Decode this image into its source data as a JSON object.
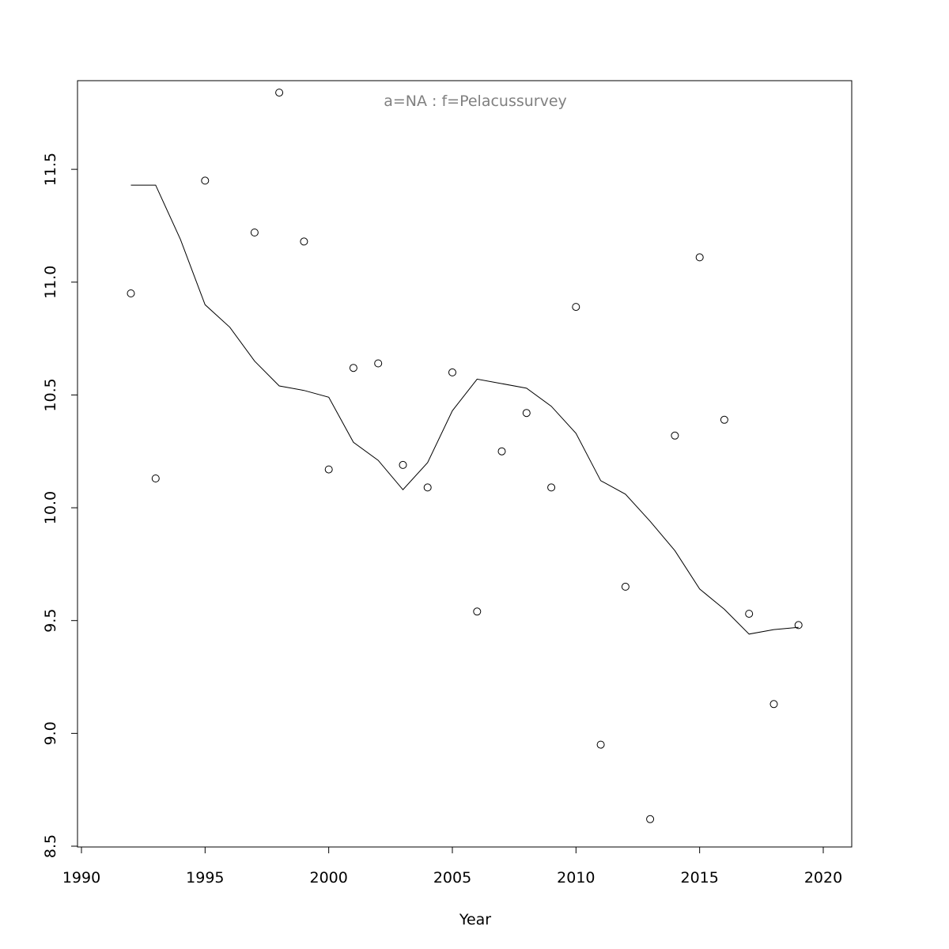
{
  "chart_data": {
    "type": "scatter",
    "title": "a=NA  :  f=Pelacussurvey",
    "xlabel": "Year",
    "ylabel": "",
    "xlim": [
      1990,
      2020
    ],
    "ylim": [
      8.5,
      11.9
    ],
    "xticks": [
      1990,
      1995,
      2000,
      2005,
      2010,
      2015,
      2020
    ],
    "yticks": [
      8.5,
      9.0,
      9.5,
      10.0,
      10.5,
      11.0,
      11.5
    ],
    "xtick_labels": [
      "1990",
      "1995",
      "2000",
      "2005",
      "2010",
      "2015",
      "2020"
    ],
    "ytick_labels": [
      "8.5",
      "9.0",
      "9.5",
      "10.0",
      "10.5",
      "11.0",
      "11.5"
    ],
    "grid": false,
    "series": [
      {
        "type": "scatter",
        "x": [
          1992,
          1993,
          1995,
          1997,
          1998,
          1999,
          2000,
          2001,
          2002,
          2003,
          2004,
          2005,
          2006,
          2007,
          2008,
          2009,
          2010,
          2011,
          2012,
          2013,
          2014,
          2015,
          2016,
          2017,
          2018,
          2019
        ],
        "y": [
          10.95,
          10.13,
          11.45,
          11.22,
          11.84,
          11.18,
          10.17,
          10.62,
          10.64,
          10.19,
          10.09,
          10.6,
          9.54,
          10.25,
          10.42,
          10.09,
          10.89,
          8.95,
          9.65,
          8.62,
          10.32,
          11.11,
          10.39,
          9.53,
          9.13,
          9.48
        ]
      },
      {
        "type": "line",
        "x": [
          1992,
          1993,
          1994,
          1995,
          1996,
          1997,
          1998,
          1999,
          2000,
          2001,
          2002,
          2003,
          2004,
          2005,
          2006,
          2007,
          2008,
          2009,
          2010,
          2011,
          2012,
          2013,
          2014,
          2015,
          2016,
          2017,
          2018,
          2019
        ],
        "y": [
          11.43,
          11.43,
          11.19,
          10.9,
          10.8,
          10.65,
          10.54,
          10.52,
          10.49,
          10.29,
          10.21,
          10.08,
          10.2,
          10.43,
          10.57,
          10.55,
          10.53,
          10.45,
          10.33,
          10.12,
          10.06,
          9.94,
          9.81,
          9.64,
          9.55,
          9.44,
          9.46,
          9.47
        ]
      }
    ]
  }
}
